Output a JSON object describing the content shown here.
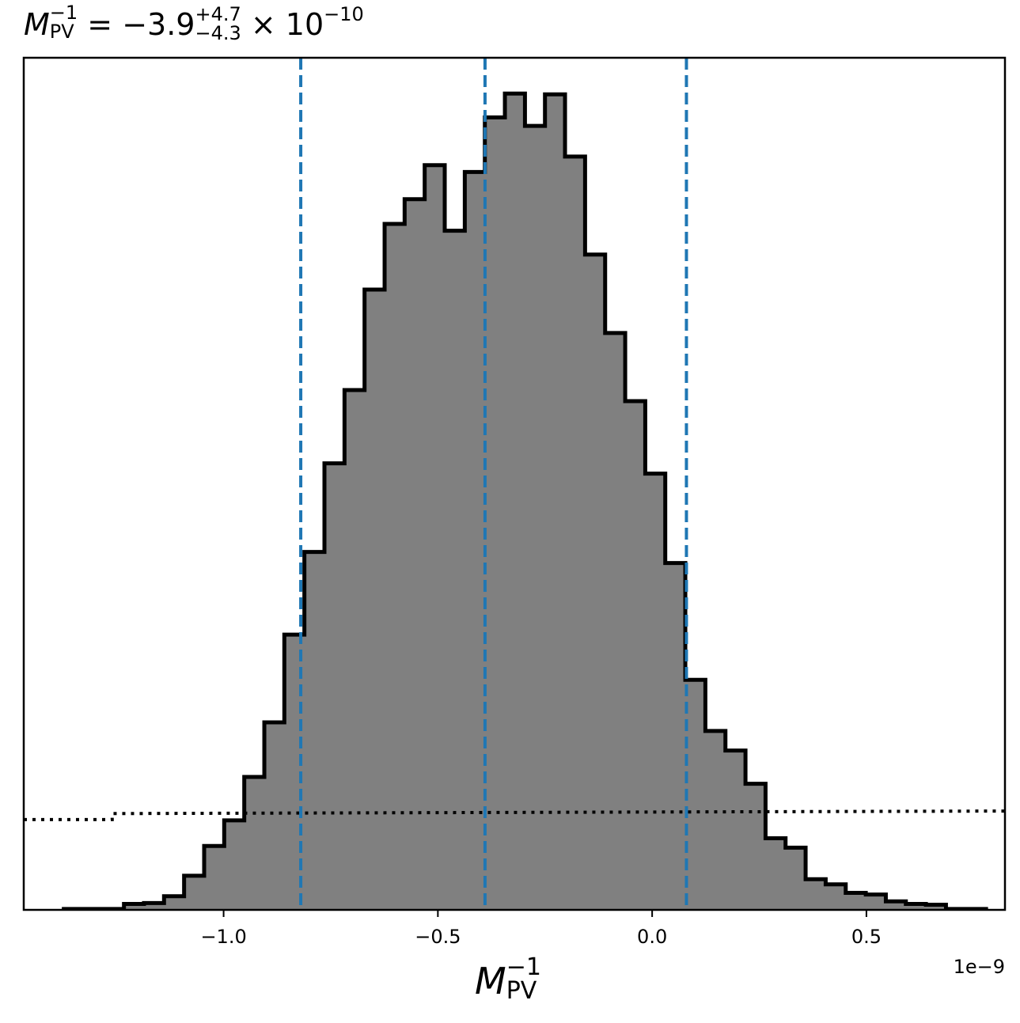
{
  "chart_data": {
    "type": "histogram",
    "title": {
      "symbol": "M",
      "subscript": "PV",
      "superscript": "−1",
      "equals": " = ",
      "value": "−3.9",
      "upper_err": "+4.7",
      "lower_err": "−4.3",
      "times": "×",
      "base": "10",
      "exponent": "−10"
    },
    "xlabel": {
      "symbol": "M",
      "subscript": "PV",
      "superscript": "−1"
    },
    "x_offset_label": "1e−9",
    "xlim": [
      -1.4664,
      0.8233
    ],
    "ylim": [
      0,
      1.0
    ],
    "x_ticks": [
      -1.0,
      -0.5,
      0.0,
      0.5
    ],
    "x_tick_labels": [
      "−1.0",
      "−0.5",
      "0.0",
      "0.5"
    ],
    "grid": false,
    "histogram": {
      "fill_color": "#808080",
      "edge_color": "#000000",
      "bin_edges": [
        -1.3729,
        -1.3261,
        -1.2793,
        -1.2325,
        -1.1858,
        -1.139,
        -1.0922,
        -1.0454,
        -0.9986,
        -0.9518,
        -0.905,
        -0.8583,
        -0.8115,
        -0.7647,
        -0.7179,
        -0.6711,
        -0.6243,
        -0.5776,
        -0.5308,
        -0.484,
        -0.4372,
        -0.3904,
        -0.3436,
        -0.2968,
        -0.2501,
        -0.2033,
        -0.1565,
        -0.1097,
        -0.0629,
        -0.0161,
        0.0306,
        0.0774,
        0.1242,
        0.171,
        0.2178,
        0.2646,
        0.3113,
        0.3581,
        0.4049,
        0.4517,
        0.4985,
        0.5453,
        0.592,
        0.6388,
        0.6856,
        0.7324,
        0.7792
      ],
      "counts": [
        0.001,
        0.001,
        0.001,
        0.007,
        0.008,
        0.016,
        0.04,
        0.075,
        0.105,
        0.156,
        0.22,
        0.323,
        0.42,
        0.524,
        0.61,
        0.728,
        0.805,
        0.834,
        0.874,
        0.797,
        0.866,
        0.93,
        0.958,
        0.92,
        0.957,
        0.884,
        0.769,
        0.677,
        0.597,
        0.512,
        0.407,
        0.27,
        0.21,
        0.187,
        0.148,
        0.084,
        0.073,
        0.036,
        0.03,
        0.02,
        0.018,
        0.01,
        0.007,
        0.006,
        0.001,
        0.001
      ]
    },
    "vertical_lines": {
      "color": "#1f77b4",
      "style": "dashed",
      "x": [
        -0.82,
        -0.39,
        0.08
      ]
    },
    "prior_line": {
      "color": "#000000",
      "style": "dotted",
      "x": [
        -1.4664,
        -1.26,
        -1.26,
        0.8233
      ],
      "y": [
        0.106,
        0.106,
        0.113,
        0.116
      ]
    }
  }
}
